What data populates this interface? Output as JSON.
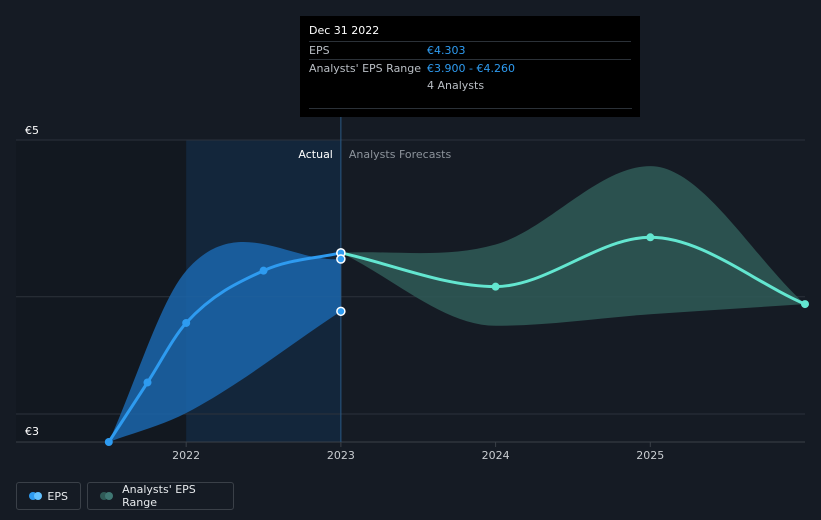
{
  "chart_data": {
    "type": "line",
    "y_ticks": [
      {
        "value": 5,
        "label": "€5"
      },
      {
        "value": 3,
        "label": "€3"
      }
    ],
    "ylim": [
      3,
      5.08
    ],
    "x_ticks": [
      {
        "value": 2022,
        "label": "2022"
      },
      {
        "value": 2023,
        "label": "2023"
      },
      {
        "value": 2024,
        "label": "2024"
      },
      {
        "value": 2025,
        "label": "2025"
      }
    ],
    "xlim": [
      2020.9,
      2026.0
    ],
    "divider_x": 2023.0,
    "region_labels": {
      "actual": "Actual",
      "forecast": "Analysts Forecasts"
    },
    "series": [
      {
        "name": "EPS",
        "color": "#2e9bf0",
        "points": [
          [
            2021.5,
            3.0
          ],
          [
            2021.75,
            3.41
          ],
          [
            2022.0,
            3.82
          ],
          [
            2022.5,
            4.18
          ],
          [
            2023.0,
            4.303
          ]
        ]
      },
      {
        "name": "EPS Forecast",
        "color": "#63e6d0",
        "points": [
          [
            2023.0,
            4.303
          ],
          [
            2024.0,
            4.07
          ],
          [
            2025.0,
            4.41
          ],
          [
            2026.0,
            3.95
          ]
        ]
      }
    ],
    "range_actual": {
      "color": "#1b66ad",
      "x": [
        2021.5,
        2022.0,
        2023.0
      ],
      "upper": [
        3.0,
        4.18,
        4.26
      ],
      "lower": [
        3.0,
        3.2,
        3.9
      ]
    },
    "range_forecast": {
      "color": "#2f5a57",
      "x": [
        2023.0,
        2024.0,
        2025.0,
        2026.0
      ],
      "upper": [
        4.303,
        4.36,
        4.9,
        3.95
      ],
      "lower": [
        4.303,
        3.8,
        3.88,
        3.95
      ]
    },
    "extra_points": [
      4.26,
      3.9
    ]
  },
  "tooltip": {
    "title": "Dec 31 2022",
    "eps_label": "EPS",
    "eps_value": "€4.303",
    "range_label": "Analysts' EPS Range",
    "range_value": "€3.900 - €4.260",
    "analysts": "4 Analysts"
  },
  "legend": {
    "eps_label": "EPS",
    "eps_color": "#2e9bf0",
    "range_label": "Analysts' EPS Range",
    "range_color": "#2f5a57"
  }
}
